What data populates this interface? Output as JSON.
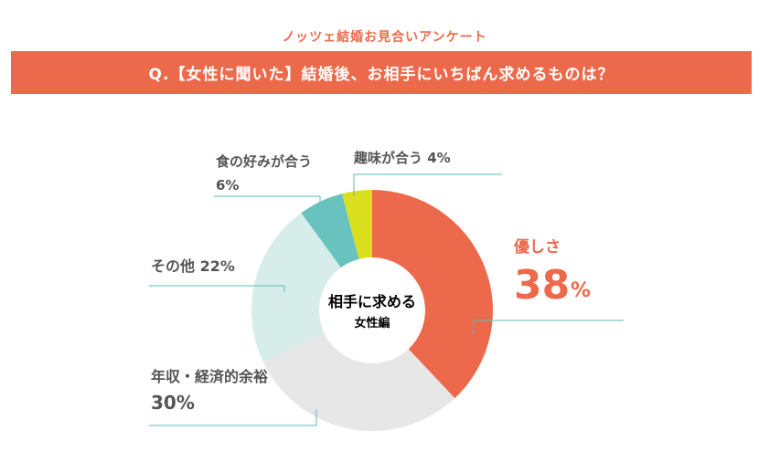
{
  "header": {
    "survey_title": "ノッツェ結婚お見合いアンケート",
    "question": "Q.【女性に聞いた】結婚後、お相手にいちばん求めるものは？"
  },
  "center_label": {
    "line1": "相手に求める",
    "line2": "女性編"
  },
  "colors": {
    "accent": "#ec6a4b",
    "leader": "#5fb8b8",
    "text": "#555555"
  },
  "chart_data": {
    "type": "pie",
    "title": "Q.【女性に聞いた】結婚後、お相手にいちばん求めるものは？",
    "categories": [
      "優しさ",
      "年収・経済的余裕",
      "その他",
      "食の好みが合う",
      "趣味が合う"
    ],
    "values": [
      38,
      30,
      22,
      6,
      4
    ],
    "value_labels": [
      "38",
      "30%",
      "22%",
      "6%",
      "4%"
    ],
    "unit": "%",
    "colors": [
      "#ec6a4b",
      "#e7e7e7",
      "#d7ede9",
      "#68c3bf",
      "#dbe01e"
    ],
    "donut": true
  }
}
